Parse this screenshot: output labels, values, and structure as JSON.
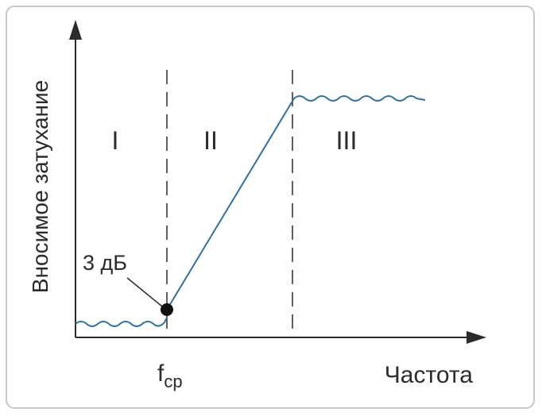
{
  "axis_labels": {
    "y": "Вносимое затухание",
    "x": "Частота"
  },
  "cutoff_label": {
    "main": "f",
    "subscript": "ср"
  },
  "regions": [
    "I",
    "II",
    "III"
  ],
  "annotation": "3 дБ"
}
